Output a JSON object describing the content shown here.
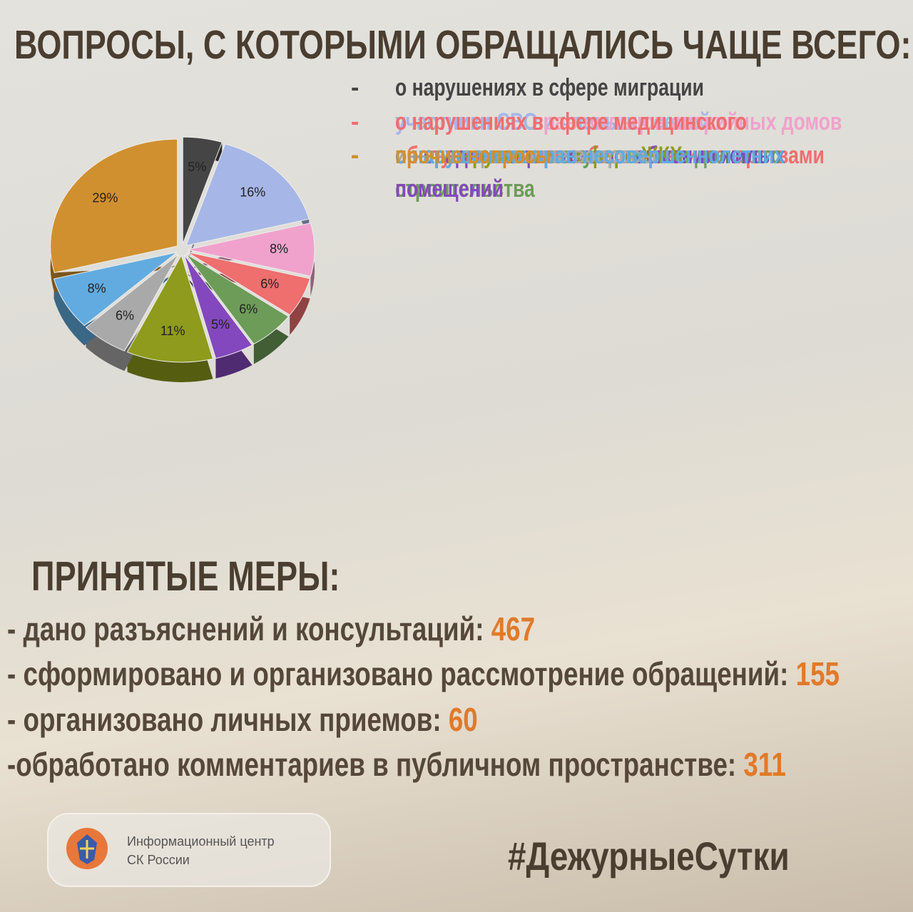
{
  "header": {
    "title": "ВОПРОСЫ, С КОТОРЫМИ ОБРАЩАЛИСЬ ЧАЩЕ ВСЕГО:"
  },
  "chart_data": {
    "type": "pie",
    "categories": [
      "о нарушениях в сфере миграции",
      "участники СВО и члены их семей",
      "о нарушениях прав жильцов аварийных домов",
      "о нарушениях в сфере медицинского обслуживания и необеспечении лекарствами",
      "о нарушениях прав участников долевого строительства",
      "о ненадлежащем теплоснабжении жилых помещений",
      "иные нарушения в сфере ЖКХ",
      "иные социальные вопросы",
      "о нарушениях прав несовершеннолетних",
      "прочие вопросы"
    ],
    "values": [
      5,
      16,
      8,
      6,
      6,
      5,
      11,
      6,
      8,
      29
    ],
    "value_labels": [
      "5%",
      "16%",
      "8%",
      "6%",
      "6%",
      "5%",
      "11%",
      "6%",
      "8%",
      "29%"
    ],
    "colors": [
      "#454545",
      "#a6b6e6",
      "#f0a2cc",
      "#ef6e6e",
      "#6c9c58",
      "#8348bd",
      "#8e9b1c",
      "#a9a9a9",
      "#62abe0",
      "#d0902f"
    ],
    "legend_marker": "-"
  },
  "measures": {
    "title": "ПРИНЯТЫЕ МЕРЫ:",
    "items": [
      {
        "label": "- дано разъяснений и консультаций:",
        "value": 467
      },
      {
        "label": "- сформировано и организовано рассмотрение обращений:",
        "value": 155
      },
      {
        "label": "- организовано личных приемов:",
        "value": 60
      },
      {
        "label": "-обработано комментариев в публичном пространстве:",
        "value": 311
      }
    ]
  },
  "footer": {
    "org": [
      "Информационный центр",
      "СК России"
    ],
    "hashtag": "#ДежурныеСутки"
  }
}
